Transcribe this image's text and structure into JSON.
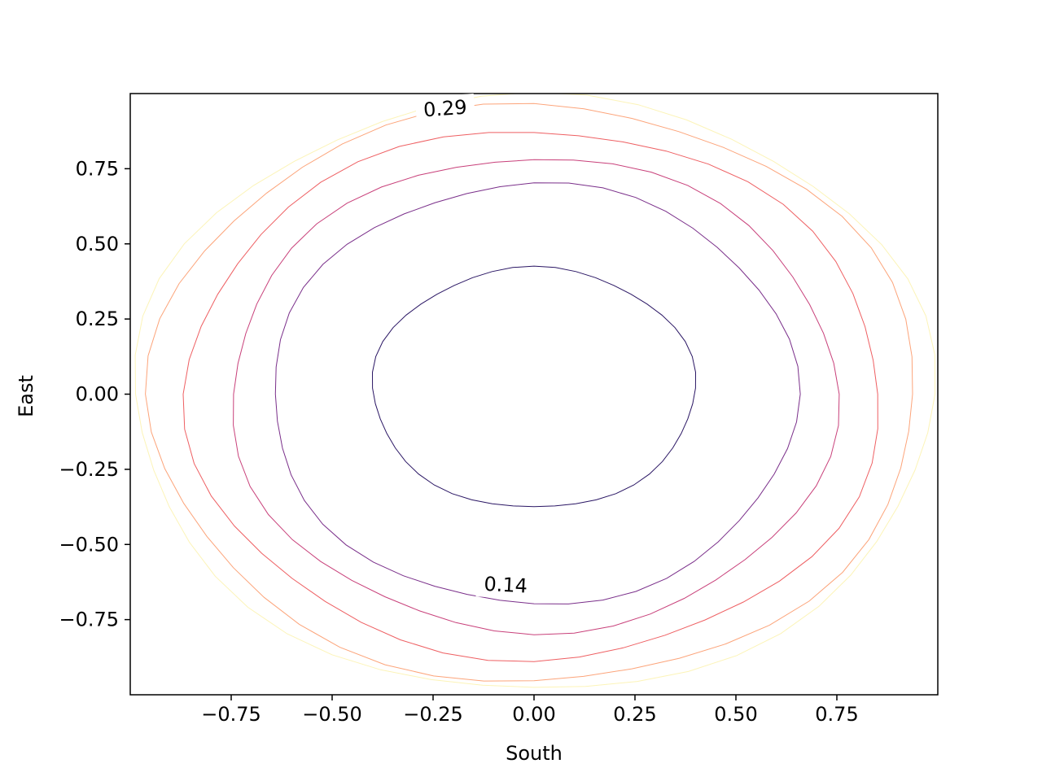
{
  "chart_data": {
    "type": "contour",
    "title": "",
    "xlabel": "South",
    "ylabel": "East",
    "xlim": [
      -1,
      1
    ],
    "ylim": [
      -1,
      1
    ],
    "grid": false,
    "x_ticks": [
      {
        "value": -0.75,
        "label": "−0.75"
      },
      {
        "value": -0.5,
        "label": "−0.50"
      },
      {
        "value": -0.25,
        "label": "−0.25"
      },
      {
        "value": 0.0,
        "label": "0.00"
      },
      {
        "value": 0.25,
        "label": "0.25"
      },
      {
        "value": 0.5,
        "label": "0.50"
      },
      {
        "value": 0.75,
        "label": "0.75"
      }
    ],
    "y_ticks": [
      {
        "value": -0.75,
        "label": "−0.75"
      },
      {
        "value": -0.5,
        "label": "−0.50"
      },
      {
        "value": -0.25,
        "label": "−0.25"
      },
      {
        "value": 0.0,
        "label": "0.00"
      },
      {
        "value": 0.25,
        "label": "0.25"
      },
      {
        "value": 0.5,
        "label": "0.50"
      },
      {
        "value": 0.75,
        "label": "0.75"
      }
    ],
    "contours": [
      {
        "color": "#2a1664",
        "rx": 0.4,
        "ry": 0.4,
        "y_offset": 0.02
      },
      {
        "color": "#7a2f8a",
        "rx": 0.65,
        "ry": 0.7,
        "y_offset": 0.0
      },
      {
        "color": "#c8407a",
        "rx": 0.75,
        "ry": 0.79,
        "y_offset": 0.0
      },
      {
        "color": "#ee5f62",
        "rx": 0.86,
        "ry": 0.88,
        "y_offset": 0.0
      },
      {
        "color": "#fca47a",
        "rx": 0.95,
        "ry": 0.96,
        "y_offset": 0.0
      },
      {
        "color": "#fcf4b8",
        "rx": 0.99,
        "ry": 0.99,
        "y_offset": 0.0
      }
    ],
    "contour_labels": [
      {
        "text": "0.29",
        "x": -0.22,
        "y": 0.95,
        "rotation": -4
      },
      {
        "text": "0.14",
        "x": -0.07,
        "y": -0.635,
        "rotation": 3
      }
    ]
  }
}
